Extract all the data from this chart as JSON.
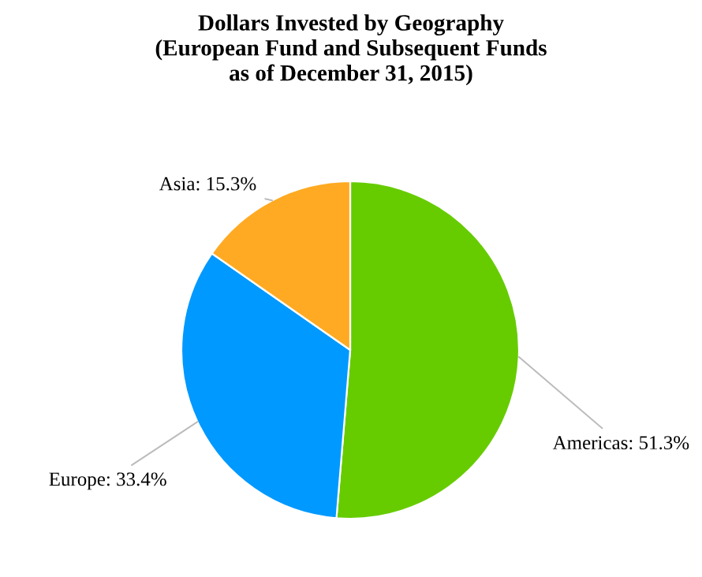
{
  "chart_data": {
    "type": "pie",
    "title": "Dollars Invested by Geography\n(European Fund and Subsequent Funds\nas of December 31, 2015)",
    "categories": [
      "Americas",
      "Europe",
      "Asia"
    ],
    "values": [
      51.3,
      33.4,
      15.3
    ],
    "value_labels": [
      "51.3%",
      "33.4%",
      "15.3%"
    ],
    "colors": [
      "#66cc00",
      "#0099ff",
      "#ffaa22"
    ],
    "legend": false
  }
}
